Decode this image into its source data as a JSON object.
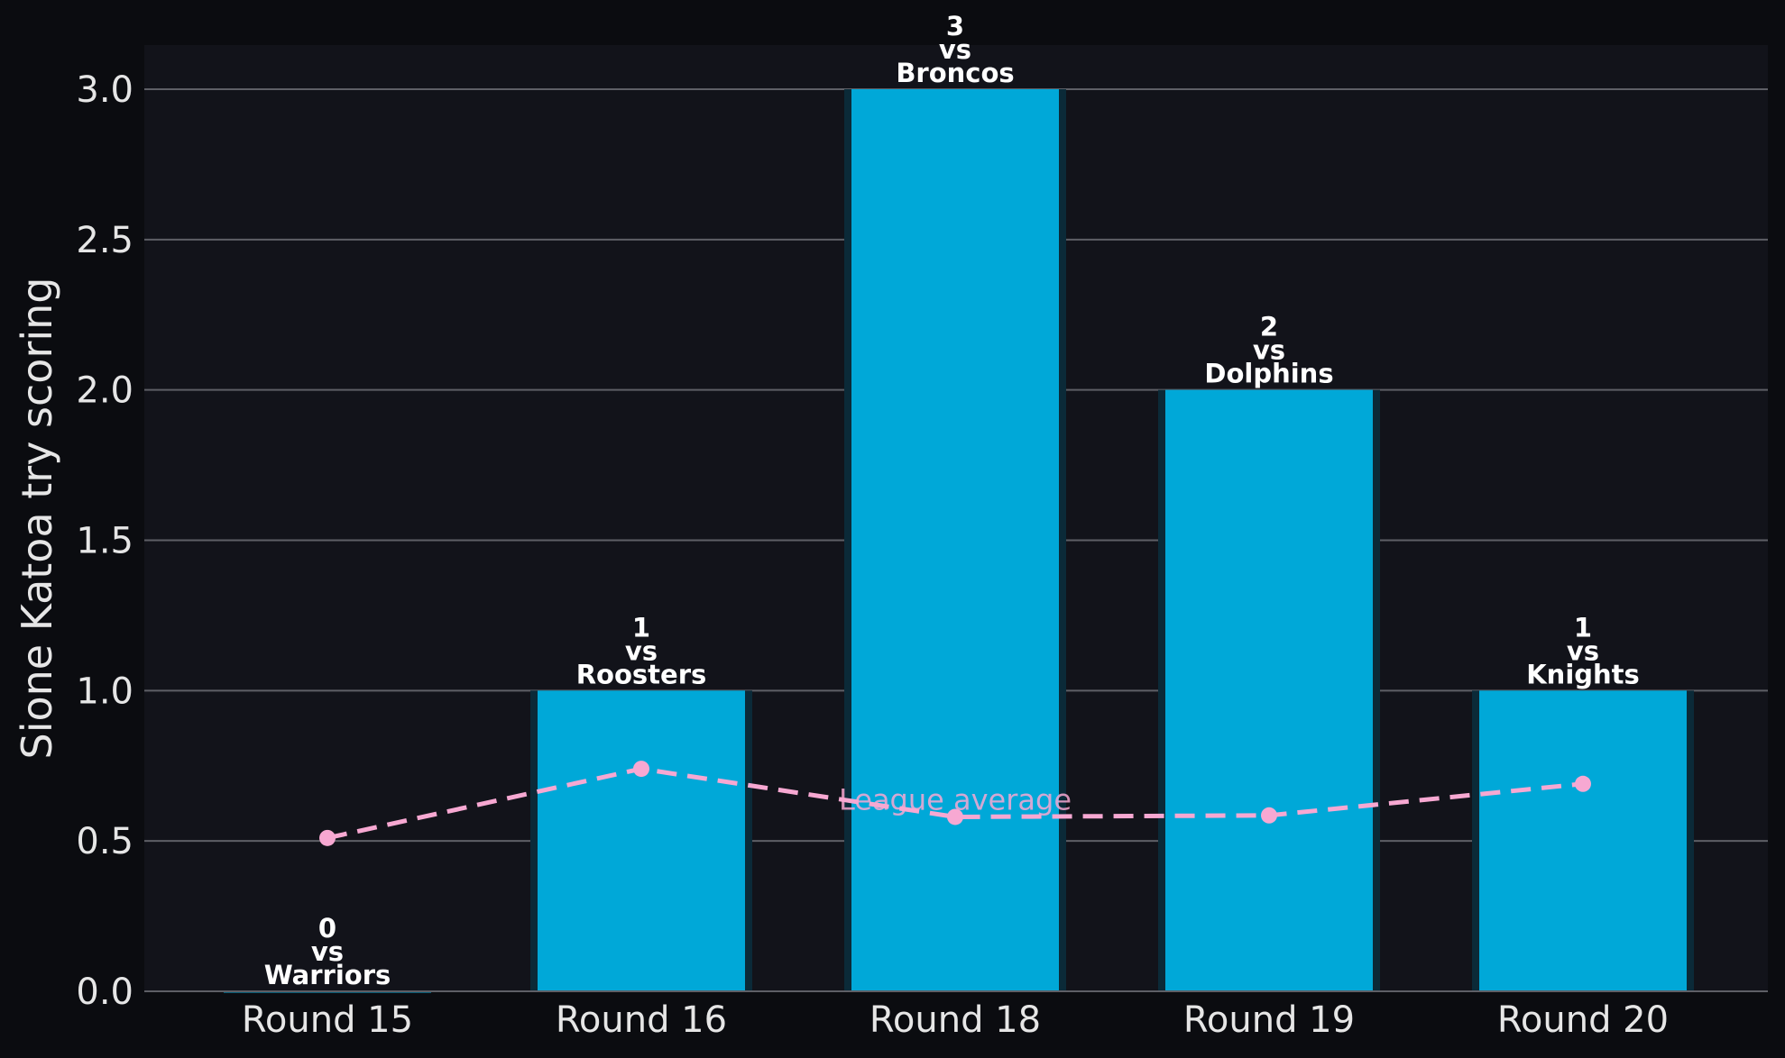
{
  "chart_data": {
    "type": "bar",
    "title": "",
    "xlabel": "",
    "ylabel": "Sione Katoa try scoring",
    "ylim": [
      0,
      3.15
    ],
    "yticks": [
      0.0,
      0.5,
      1.0,
      1.5,
      2.0,
      2.5,
      3.0
    ],
    "ytick_labels": [
      "0.0",
      "0.5",
      "1.0",
      "1.5",
      "2.0",
      "2.5",
      "3.0"
    ],
    "categories": [
      "Round 15",
      "Round 16",
      "Round 18",
      "Round 19",
      "Round 20"
    ],
    "values": [
      0,
      1,
      3,
      2,
      1
    ],
    "opponents": [
      "Warriors",
      "Roosters",
      "Broncos",
      "Dolphins",
      "Knights"
    ],
    "bar_label_vs": "vs",
    "grid": true,
    "series": [
      {
        "type": "line",
        "style": "dashed",
        "values": [
          0.51,
          0.74,
          0.58,
          0.585,
          0.69
        ],
        "annotation": "League average",
        "annotation_at_index": 2
      }
    ],
    "colors": {
      "page_background": "#0b0c10",
      "plot_background": "#12131a",
      "bar": "#00a8d8",
      "bar_edge": "#0b2a38",
      "line": "#f7a8d2",
      "grid": "#5e5f66",
      "text": "#e6e6e6",
      "label": "#ffffff"
    }
  }
}
